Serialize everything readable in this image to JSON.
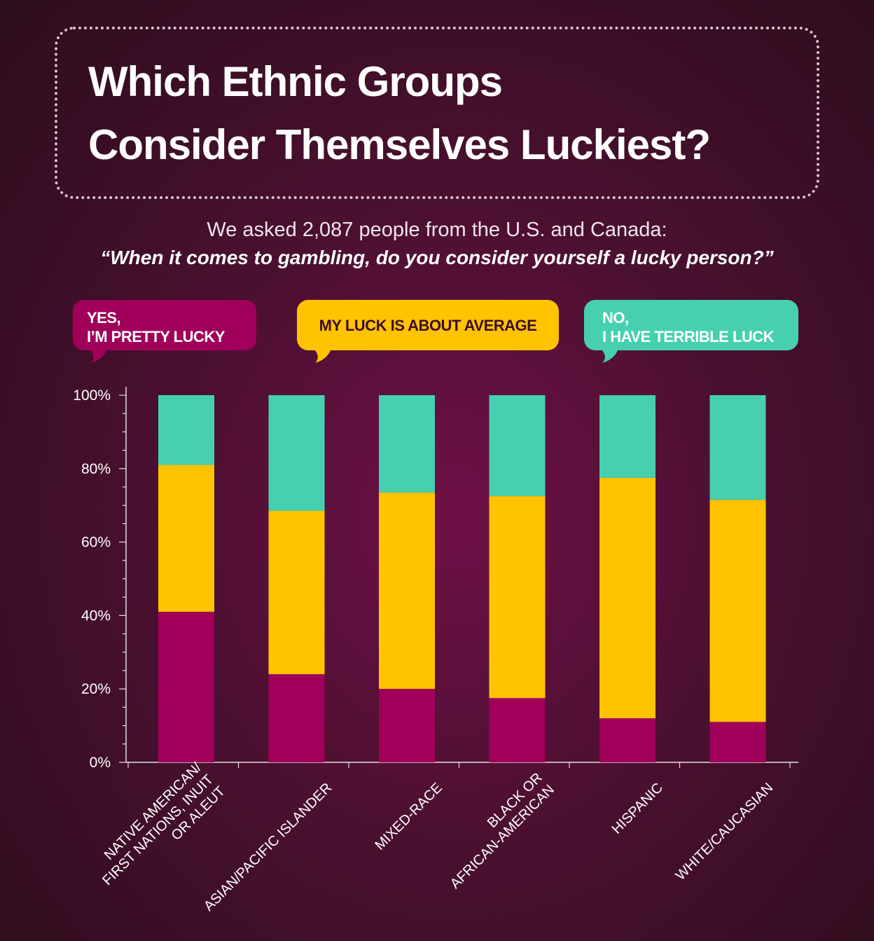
{
  "header": {
    "title_line1": "Which Ethnic Groups",
    "title_line2": "Consider Themselves Luckiest?",
    "subtitle": "We asked 2,087 people from the U.S. and Canada:",
    "question": "“When it comes to gambling, do you consider yourself a lucky person?”"
  },
  "legend": {
    "yes_line1": "YES,",
    "yes_line2": "I’M PRETTY LUCKY",
    "average": "MY LUCK IS ABOUT AVERAGE",
    "no_line1": "NO,",
    "no_line2": "I HAVE TERRIBLE LUCK"
  },
  "colors": {
    "yes": "#a0005a",
    "average": "#ffc300",
    "no": "#46d0b0",
    "axis": "#e8dde3"
  },
  "chart_data": {
    "type": "bar",
    "stacked": true,
    "categories": [
      [
        "NATIVE AMERICAN/",
        "FIRST NATIONS, INUIT",
        "OR ALEUT"
      ],
      [
        "ASIAN/PACIFIC ISLANDER"
      ],
      [
        "MIXED-RACE"
      ],
      [
        "BLACK OR",
        "AFRICAN-AMERICAN"
      ],
      [
        "HISPANIC"
      ],
      [
        "WHITE/CAUCASIAN"
      ]
    ],
    "series": [
      {
        "name": "YES, I’M PRETTY LUCKY",
        "values": [
          41,
          24,
          20,
          17.5,
          12,
          11
        ]
      },
      {
        "name": "MY LUCK IS ABOUT AVERAGE",
        "values": [
          40,
          44.5,
          53.5,
          55,
          65.5,
          60.5
        ]
      },
      {
        "name": "NO, I HAVE TERRIBLE LUCK",
        "values": [
          19,
          31.5,
          26.5,
          27.5,
          22.5,
          28.5
        ]
      }
    ],
    "yticks": [
      "0%",
      "20%",
      "40%",
      "60%",
      "80%",
      "100%"
    ],
    "ylim": [
      0,
      100
    ],
    "grid": false
  }
}
